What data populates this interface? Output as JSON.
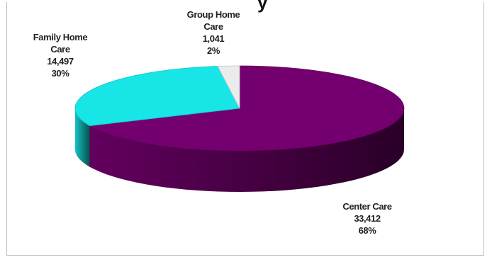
{
  "chart_data": {
    "type": "pie",
    "title_fragment": "y",
    "slices": [
      {
        "name": "Center Care",
        "value": 33412,
        "percent": 68,
        "value_label": "33,412",
        "percent_label": "68%",
        "color": "#74006f"
      },
      {
        "name": "Family Home Care",
        "value": 14497,
        "percent": 30,
        "value_label": "14,497",
        "percent_label": "30%",
        "color": "#18e5e5"
      },
      {
        "name": "Group Home Care",
        "value": 1041,
        "percent": 2,
        "value_label": "1,041",
        "percent_label": "2%",
        "color": "#ebebeb"
      }
    ],
    "style": "3d-tilted"
  },
  "labels": {
    "group": {
      "line1": "Group Home",
      "line2": "Care",
      "value": "1,041",
      "pct": "2%"
    },
    "family": {
      "line1": "Family Home",
      "line2": "Care",
      "value": "14,497",
      "pct": "30%"
    },
    "center": {
      "line1": "Center Care",
      "value": "33,412",
      "pct": "68%"
    }
  }
}
